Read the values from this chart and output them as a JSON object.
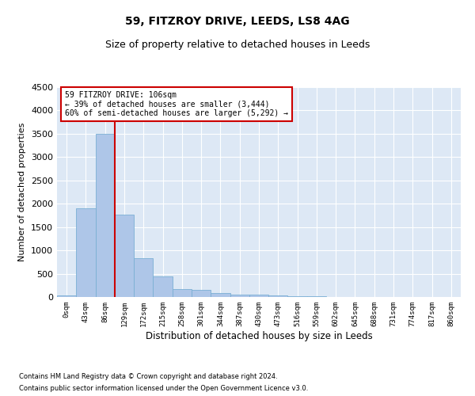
{
  "title": "59, FITZROY DRIVE, LEEDS, LS8 4AG",
  "subtitle": "Size of property relative to detached houses in Leeds",
  "xlabel": "Distribution of detached houses by size in Leeds",
  "ylabel": "Number of detached properties",
  "bar_color": "#aec6e8",
  "bar_edge_color": "#7aafd4",
  "vline_color": "#cc0000",
  "vline_x": 2.5,
  "annotation_text": "59 FITZROY DRIVE: 106sqm\n← 39% of detached houses are smaller (3,444)\n60% of semi-detached houses are larger (5,292) →",
  "annotation_box_color": "#cc0000",
  "bins": [
    "0sqm",
    "43sqm",
    "86sqm",
    "129sqm",
    "172sqm",
    "215sqm",
    "258sqm",
    "301sqm",
    "344sqm",
    "387sqm",
    "430sqm",
    "473sqm",
    "516sqm",
    "559sqm",
    "602sqm",
    "645sqm",
    "688sqm",
    "731sqm",
    "774sqm",
    "817sqm",
    "860sqm"
  ],
  "values": [
    30,
    1900,
    3500,
    1760,
    840,
    450,
    170,
    160,
    90,
    55,
    50,
    30,
    20,
    10,
    5,
    3,
    2,
    1,
    1,
    0,
    0
  ],
  "ylim": [
    0,
    4500
  ],
  "yticks": [
    0,
    500,
    1000,
    1500,
    2000,
    2500,
    3000,
    3500,
    4000,
    4500
  ],
  "footnote1": "Contains HM Land Registry data © Crown copyright and database right 2024.",
  "footnote2": "Contains public sector information licensed under the Open Government Licence v3.0.",
  "background_color": "#dde8f5",
  "title_fontsize": 10,
  "subtitle_fontsize": 9
}
